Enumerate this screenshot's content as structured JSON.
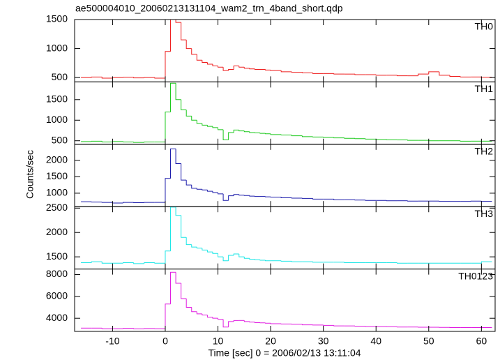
{
  "chart_data": [
    {
      "type": "histogram",
      "title": "ae500004010_20060213131104_wam2_trn_4band_short.qdp",
      "ylabel": "Counts/sec",
      "annotation": "TH0",
      "color": "#ee1c1c",
      "bins": [
        -16,
        -14,
        -12,
        -10,
        -8,
        -6,
        -4,
        -2,
        0,
        1,
        2,
        3,
        4,
        5,
        6,
        7,
        8,
        9,
        10,
        11,
        12,
        13,
        14,
        15,
        16,
        17,
        18,
        19,
        20,
        22,
        24,
        26,
        28,
        30,
        32,
        34,
        36,
        38,
        40,
        42,
        44,
        46,
        48,
        50,
        52,
        54,
        56,
        58,
        60,
        62
      ],
      "values": [
        500,
        510,
        490,
        500,
        505,
        495,
        500,
        490,
        950,
        1500,
        1450,
        1150,
        1000,
        900,
        800,
        760,
        730,
        700,
        680,
        620,
        640,
        700,
        680,
        660,
        650,
        640,
        640,
        630,
        620,
        600,
        590,
        580,
        570,
        570,
        560,
        560,
        550,
        550,
        540,
        540,
        530,
        530,
        560,
        600,
        540,
        520,
        510,
        510,
        505
      ],
      "xlim": [
        -17.2,
        62.6
      ],
      "ylim": [
        425,
        1500
      ],
      "yticks": [
        500,
        1000,
        1500
      ]
    },
    {
      "type": "histogram",
      "annotation": "TH1",
      "color": "#19c819",
      "bins": [
        -16,
        -14,
        -12,
        -10,
        -8,
        -6,
        -4,
        -2,
        0,
        1,
        2,
        3,
        4,
        5,
        6,
        7,
        8,
        9,
        10,
        11,
        12,
        13,
        14,
        15,
        16,
        17,
        18,
        19,
        20,
        22,
        24,
        26,
        28,
        30,
        32,
        34,
        36,
        38,
        40,
        42,
        44,
        46,
        48,
        50,
        52,
        54,
        56,
        58,
        60,
        62
      ],
      "values": [
        480,
        490,
        470,
        480,
        470,
        460,
        470,
        470,
        1200,
        1900,
        1500,
        1250,
        1100,
        1000,
        920,
        880,
        850,
        820,
        770,
        520,
        700,
        760,
        740,
        720,
        700,
        690,
        680,
        670,
        650,
        640,
        620,
        600,
        590,
        580,
        570,
        560,
        550,
        540,
        530,
        520,
        520,
        510,
        510,
        500,
        500,
        500,
        490,
        490,
        490
      ],
      "xlim": [
        -17.2,
        62.6
      ],
      "ylim": [
        414,
        1931
      ],
      "yticks": [
        500,
        1000,
        1500
      ]
    },
    {
      "type": "histogram",
      "annotation": "TH2",
      "color": "#1a1aaa",
      "bins": [
        -16,
        -14,
        -12,
        -10,
        -8,
        -6,
        -4,
        -2,
        0,
        1,
        2,
        3,
        4,
        5,
        6,
        7,
        8,
        9,
        10,
        11,
        12,
        13,
        14,
        15,
        16,
        17,
        18,
        19,
        20,
        22,
        24,
        26,
        28,
        30,
        32,
        34,
        36,
        38,
        40,
        42,
        44,
        46,
        48,
        50,
        52,
        54,
        56,
        58,
        60,
        62
      ],
      "values": [
        740,
        730,
        720,
        700,
        720,
        710,
        720,
        720,
        1450,
        2350,
        1900,
        1400,
        1250,
        1150,
        1120,
        1100,
        1060,
        1020,
        980,
        780,
        920,
        960,
        940,
        930,
        910,
        900,
        900,
        890,
        880,
        860,
        850,
        840,
        820,
        820,
        800,
        800,
        790,
        780,
        780,
        770,
        770,
        760,
        760,
        760,
        750,
        750,
        750,
        760,
        750
      ],
      "xlim": [
        -17.2,
        62.6
      ],
      "ylim": [
        590,
        2490
      ],
      "yticks": [
        1000,
        1500,
        2000
      ]
    },
    {
      "type": "histogram",
      "annotation": "TH3",
      "color": "#1ae6e6",
      "bins": [
        -16,
        -14,
        -12,
        -10,
        -8,
        -6,
        -4,
        -2,
        0,
        1,
        2,
        3,
        4,
        5,
        6,
        7,
        8,
        9,
        10,
        11,
        12,
        13,
        14,
        15,
        16,
        17,
        18,
        19,
        20,
        22,
        24,
        26,
        28,
        30,
        32,
        34,
        36,
        38,
        40,
        42,
        44,
        46,
        48,
        50,
        52,
        54,
        56,
        58,
        60,
        62
      ],
      "values": [
        1380,
        1400,
        1370,
        1370,
        1380,
        1360,
        1380,
        1370,
        1620,
        2520,
        2350,
        1900,
        1750,
        1700,
        1680,
        1640,
        1600,
        1570,
        1500,
        1420,
        1530,
        1560,
        1500,
        1470,
        1450,
        1440,
        1430,
        1420,
        1420,
        1410,
        1400,
        1400,
        1390,
        1390,
        1390,
        1380,
        1380,
        1380,
        1380,
        1380,
        1370,
        1370,
        1370,
        1370,
        1370,
        1370,
        1370,
        1370,
        1400
      ],
      "xlim": [
        -17.2,
        62.6
      ],
      "ylim": [
        1250,
        2530
      ],
      "yticks": [
        1500,
        2000,
        2500
      ]
    },
    {
      "type": "histogram",
      "annotation": "TH0123",
      "xlabel": "Time [sec] 0 = 2006/02/13 13:11:04",
      "color": "#e01ae0",
      "bins": [
        -16,
        -14,
        -12,
        -10,
        -8,
        -6,
        -4,
        -2,
        0,
        1,
        2,
        3,
        4,
        5,
        6,
        7,
        8,
        9,
        10,
        11,
        12,
        13,
        14,
        15,
        16,
        17,
        18,
        19,
        20,
        22,
        24,
        26,
        28,
        30,
        32,
        34,
        36,
        38,
        40,
        42,
        44,
        46,
        48,
        50,
        52,
        54,
        56,
        58,
        60,
        62
      ],
      "values": [
        3100,
        3100,
        3050,
        3050,
        3080,
        3040,
        3060,
        3050,
        5300,
        8200,
        7200,
        5800,
        5000,
        4600,
        4400,
        4300,
        4100,
        4000,
        3900,
        3200,
        3700,
        3800,
        3800,
        3700,
        3650,
        3600,
        3580,
        3550,
        3500,
        3480,
        3450,
        3400,
        3380,
        3350,
        3300,
        3300,
        3280,
        3250,
        3240,
        3220,
        3200,
        3200,
        3180,
        3180,
        3170,
        3150,
        3150,
        3150,
        3150
      ],
      "xlim": [
        -17.2,
        62.6
      ],
      "ylim": [
        2800,
        8500
      ],
      "yticks": [
        4000,
        6000,
        8000
      ],
      "xticks": [
        -10,
        0,
        10,
        20,
        30,
        40,
        50,
        60
      ]
    }
  ]
}
